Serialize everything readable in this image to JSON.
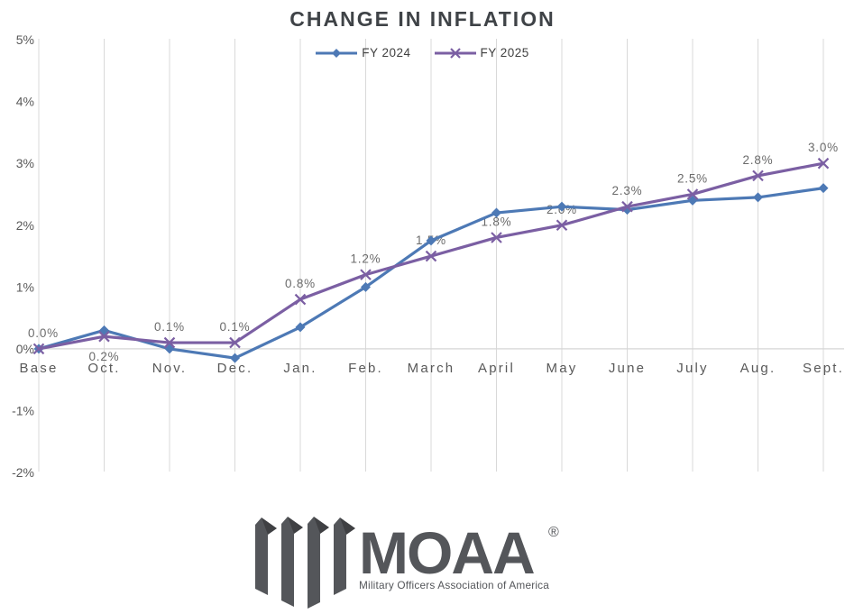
{
  "title": "CHANGE IN INFLATION",
  "chart_data": {
    "type": "line",
    "categories": [
      "Base",
      "Oct.",
      "Nov.",
      "Dec.",
      "Jan.",
      "Feb.",
      "March",
      "April",
      "May",
      "June",
      "July",
      "Aug.",
      "Sept."
    ],
    "series": [
      {
        "name": "FY 2024",
        "marker": "diamond",
        "color": "#4d79b5",
        "values": [
          0.0,
          0.3,
          0.0,
          -0.15,
          0.35,
          1.0,
          1.75,
          2.2,
          2.3,
          2.25,
          2.4,
          2.45,
          2.6
        ],
        "labels": null
      },
      {
        "name": "FY 2025",
        "marker": "x",
        "color": "#7b5fa3",
        "values": [
          0.0,
          0.2,
          0.1,
          0.1,
          0.8,
          1.2,
          1.5,
          1.8,
          2.0,
          2.3,
          2.5,
          2.8,
          3.0
        ],
        "labels": [
          "0.0%",
          "0.2%",
          "0.1%",
          "0.1%",
          "0.8%",
          "1.2%",
          "1.5%",
          "1.8%",
          "2.0%",
          "2.3%",
          "2.5%",
          "2.8%",
          "3.0%"
        ],
        "label_positions": [
          "above",
          "below",
          "above",
          "above",
          "above",
          "above",
          "above",
          "above",
          "above",
          "above",
          "above",
          "above",
          "above"
        ]
      }
    ],
    "y_ticks": [
      "5%",
      "4%",
      "3%",
      "2%",
      "1%",
      "0%",
      "-1%",
      "-2%"
    ],
    "y_tick_values": [
      5,
      4,
      3,
      2,
      1,
      0,
      -1,
      -2
    ],
    "ylim": [
      -2,
      5
    ],
    "grid": "vertical-only",
    "legend_position": "top-center",
    "xlabel": "",
    "ylabel": ""
  },
  "legend": {
    "items": [
      {
        "label": "FY 2024"
      },
      {
        "label": "FY 2025"
      }
    ]
  },
  "logo": {
    "name": "MOAA",
    "registered": "®",
    "tagline": "Military Officers Association of America",
    "color": "#54565a"
  },
  "colors": {
    "fy2024": "#4d79b5",
    "fy2025": "#7b5fa3",
    "gridline": "#d9d9d9",
    "axis_line": "#d6d6d6",
    "axis_text": "#595959",
    "data_label_text": "#6b6b6b",
    "title_text": "#3f4347",
    "background": "#ffffff"
  }
}
